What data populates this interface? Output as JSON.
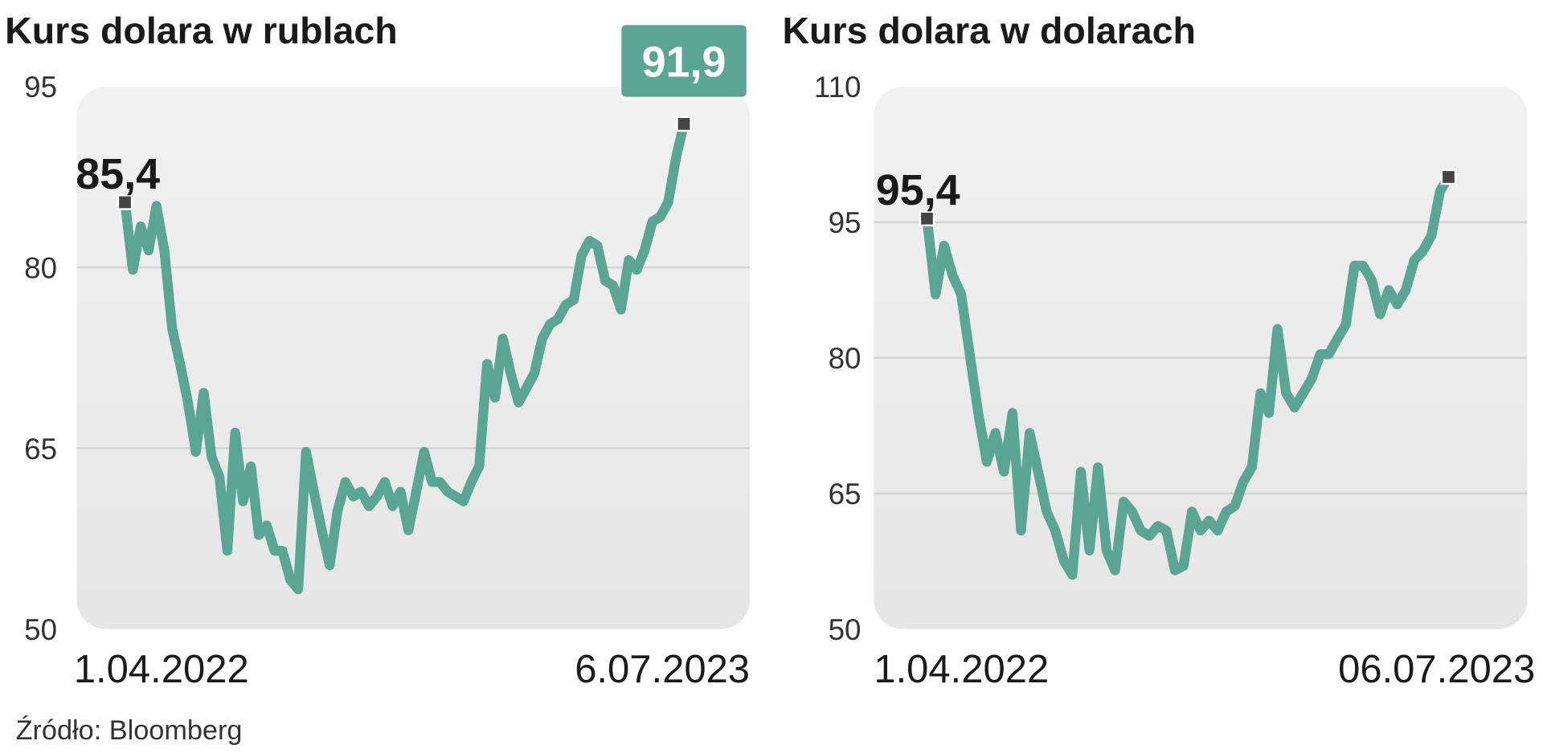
{
  "chart_data": [
    {
      "type": "line",
      "title": "Kurs dolara w rublach",
      "color": "#5aa593",
      "ylim": [
        50,
        95
      ],
      "yticks": [
        50,
        65,
        80,
        95
      ],
      "grid": true,
      "categories": [
        "1.04.2022",
        null,
        null,
        null,
        null,
        null,
        null,
        null,
        null,
        null,
        null,
        null,
        null,
        null,
        null,
        null,
        null,
        null,
        null,
        null,
        null,
        null,
        null,
        null,
        null,
        null,
        null,
        null,
        null,
        null,
        null,
        null,
        null,
        null,
        null,
        null,
        null,
        null,
        null,
        null,
        null,
        null,
        null,
        null,
        null,
        null,
        null,
        null,
        null,
        null,
        null,
        null,
        null,
        null,
        null,
        null,
        null,
        null,
        null,
        null,
        null,
        null,
        null,
        null,
        null,
        null,
        null,
        null,
        null,
        null,
        null,
        "6.07.2023"
      ],
      "values": [
        85.4,
        79.8,
        83.4,
        81.4,
        85.1,
        81.4,
        74.9,
        72.0,
        68.8,
        64.7,
        69.6,
        64.3,
        62.6,
        56.5,
        66.3,
        60.6,
        63.5,
        57.8,
        58.6,
        56.5,
        56.5,
        54.1,
        53.3,
        64.7,
        61.4,
        58.2,
        55.3,
        59.8,
        62.2,
        61.0,
        61.4,
        60.2,
        61.0,
        62.2,
        60.2,
        61.4,
        58.2,
        61.4,
        64.7,
        62.2,
        62.2,
        61.4,
        61.0,
        60.6,
        62.2,
        63.5,
        72.0,
        69.2,
        74.1,
        71.2,
        68.8,
        70.0,
        71.2,
        74.1,
        75.3,
        75.7,
        76.9,
        77.3,
        81.0,
        82.2,
        81.8,
        78.9,
        78.5,
        76.5,
        80.6,
        79.8,
        81.4,
        83.8,
        84.2,
        85.4,
        89.1,
        91.9
      ],
      "value_labels": [
        "85,4",
        null,
        null,
        null,
        null,
        null,
        null,
        null,
        null,
        null,
        null,
        null,
        null,
        null,
        null,
        null,
        null,
        null,
        null,
        null,
        null,
        null,
        null,
        null,
        null,
        null,
        null,
        null,
        null,
        null,
        null,
        null,
        null,
        null,
        null,
        null,
        null,
        null,
        null,
        null,
        null,
        null,
        null,
        null,
        null,
        null,
        null,
        null,
        null,
        null,
        null,
        null,
        null,
        null,
        null,
        null,
        null,
        null,
        null,
        null,
        null,
        null,
        null,
        null,
        null,
        null,
        null,
        null,
        null,
        null,
        null,
        "91,9"
      ]
    },
    {
      "type": "line",
      "title": "Kurs dolara w dolarach",
      "color": "#5aa593",
      "ylim": [
        50,
        110
      ],
      "yticks": [
        50,
        65,
        80,
        95,
        110
      ],
      "grid": true,
      "categories": [
        "1.04.2022",
        null,
        null,
        null,
        null,
        null,
        null,
        null,
        null,
        null,
        null,
        null,
        null,
        null,
        null,
        null,
        null,
        null,
        null,
        null,
        null,
        null,
        null,
        null,
        null,
        null,
        null,
        null,
        null,
        null,
        null,
        null,
        null,
        null,
        null,
        null,
        null,
        null,
        null,
        null,
        null,
        null,
        null,
        null,
        null,
        null,
        null,
        null,
        null,
        null,
        null,
        null,
        null,
        null,
        null,
        null,
        null,
        null,
        null,
        null,
        null,
        "06.07.2023"
      ],
      "values": [
        95.4,
        87.0,
        92.4,
        89.1,
        87.0,
        80.4,
        73.9,
        68.5,
        71.7,
        67.4,
        73.9,
        60.9,
        71.7,
        67.4,
        63.0,
        60.9,
        57.6,
        56.0,
        67.4,
        58.7,
        67.9,
        58.7,
        56.5,
        64.1,
        63.0,
        60.9,
        60.3,
        61.4,
        60.9,
        56.5,
        57.0,
        63.0,
        60.9,
        62.0,
        60.9,
        63.0,
        63.6,
        66.3,
        67.9,
        76.1,
        73.9,
        83.2,
        76.1,
        74.5,
        76.1,
        77.7,
        80.4,
        80.4,
        82.1,
        83.7,
        90.2,
        90.2,
        88.6,
        84.8,
        87.5,
        85.9,
        87.5,
        90.8,
        91.8,
        93.5,
        98.4,
        100
      ],
      "value_labels": [
        "95,4",
        null,
        null,
        null,
        null,
        null,
        null,
        null,
        null,
        null,
        null,
        null,
        null,
        null,
        null,
        null,
        null,
        null,
        null,
        null,
        null,
        null,
        null,
        null,
        null,
        null,
        null,
        null,
        null,
        null,
        null,
        null,
        null,
        null,
        null,
        null,
        null,
        null,
        null,
        null,
        null,
        null,
        null,
        null,
        null,
        null,
        null,
        null,
        null,
        null,
        null,
        null,
        null,
        null,
        null,
        null,
        null,
        null,
        null,
        null,
        null,
        null
      ]
    }
  ],
  "source": "Źródło: Bloomberg"
}
